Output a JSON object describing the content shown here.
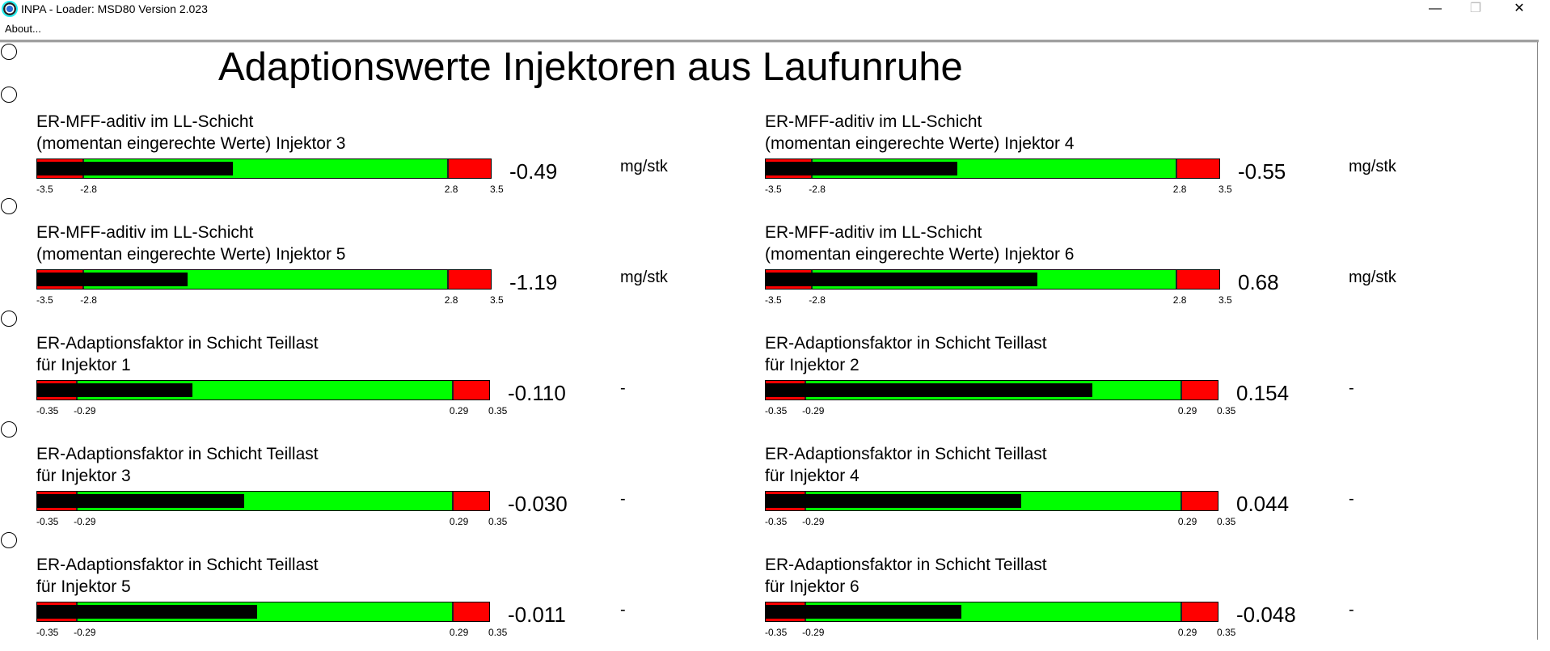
{
  "window": {
    "title": "INPA - Loader:  MSD80 Version 2.023",
    "minimize": "—",
    "restore": "❐",
    "close": "✕"
  },
  "menu": {
    "about": "About..."
  },
  "page_title": "Adaptionswerte Injektoren aus Laufunruhe",
  "colors": {
    "ok": "#00ff00",
    "limit": "#ff0000",
    "indicator": "#000000"
  },
  "gauges": [
    {
      "line1": "ER-MFF-aditiv im LL-Schicht",
      "line2": "(momentan eingerechte Werte) Injektor 3",
      "min": -3.5,
      "low": -2.8,
      "high": 2.8,
      "max": 3.5,
      "ticks": [
        "-3.5",
        "-2.8",
        "2.8",
        "3.5"
      ],
      "value": -0.49,
      "value_text": "-0.49",
      "unit": "mg/stk"
    },
    {
      "line1": "ER-MFF-aditiv im LL-Schicht",
      "line2": "(momentan eingerechte Werte) Injektor 4",
      "min": -3.5,
      "low": -2.8,
      "high": 2.8,
      "max": 3.5,
      "ticks": [
        "-3.5",
        "-2.8",
        "2.8",
        "3.5"
      ],
      "value": -0.55,
      "value_text": "-0.55",
      "unit": "mg/stk"
    },
    {
      "line1": "ER-MFF-aditiv im LL-Schicht",
      "line2": "(momentan eingerechte Werte) Injektor 5",
      "min": -3.5,
      "low": -2.8,
      "high": 2.8,
      "max": 3.5,
      "ticks": [
        "-3.5",
        "-2.8",
        "2.8",
        "3.5"
      ],
      "value": -1.19,
      "value_text": "-1.19",
      "unit": "mg/stk"
    },
    {
      "line1": "ER-MFF-aditiv im LL-Schicht",
      "line2": "(momentan eingerechte Werte) Injektor 6",
      "min": -3.5,
      "low": -2.8,
      "high": 2.8,
      "max": 3.5,
      "ticks": [
        "-3.5",
        "-2.8",
        "2.8",
        "3.5"
      ],
      "value": 0.68,
      "value_text": "0.68",
      "unit": "mg/stk"
    },
    {
      "line1": "ER-Adaptionsfaktor in Schicht Teillast",
      "line2": "für Injektor 1",
      "min": -0.35,
      "low": -0.29,
      "high": 0.29,
      "max": 0.35,
      "ticks": [
        "-0.35",
        "-0.29",
        "0.29",
        "0.35"
      ],
      "value": -0.11,
      "value_text": "-0.110",
      "unit": "-"
    },
    {
      "line1": "ER-Adaptionsfaktor in Schicht Teillast",
      "line2": "für Injektor 2",
      "min": -0.35,
      "low": -0.29,
      "high": 0.29,
      "max": 0.35,
      "ticks": [
        "-0.35",
        "-0.29",
        "0.29",
        "0.35"
      ],
      "value": 0.154,
      "value_text": "0.154",
      "unit": "-"
    },
    {
      "line1": "ER-Adaptionsfaktor in Schicht Teillast",
      "line2": "für Injektor 3",
      "min": -0.35,
      "low": -0.29,
      "high": 0.29,
      "max": 0.35,
      "ticks": [
        "-0.35",
        "-0.29",
        "0.29",
        "0.35"
      ],
      "value": -0.03,
      "value_text": "-0.030",
      "unit": "-"
    },
    {
      "line1": "ER-Adaptionsfaktor in Schicht Teillast",
      "line2": "für Injektor 4",
      "min": -0.35,
      "low": -0.29,
      "high": 0.29,
      "max": 0.35,
      "ticks": [
        "-0.35",
        "-0.29",
        "0.29",
        "0.35"
      ],
      "value": 0.044,
      "value_text": "0.044",
      "unit": "-"
    },
    {
      "line1": "ER-Adaptionsfaktor in Schicht Teillast",
      "line2": "für Injektor 5",
      "min": -0.35,
      "low": -0.29,
      "high": 0.29,
      "max": 0.35,
      "ticks": [
        "-0.35",
        "-0.29",
        "0.29",
        "0.35"
      ],
      "value": -0.011,
      "value_text": "-0.011",
      "unit": "-"
    },
    {
      "line1": "ER-Adaptionsfaktor in Schicht Teillast",
      "line2": "für Injektor 6",
      "min": -0.35,
      "low": -0.29,
      "high": 0.29,
      "max": 0.35,
      "ticks": [
        "-0.35",
        "-0.29",
        "0.29",
        "0.35"
      ],
      "value": -0.048,
      "value_text": "-0.048",
      "unit": "-"
    }
  ]
}
